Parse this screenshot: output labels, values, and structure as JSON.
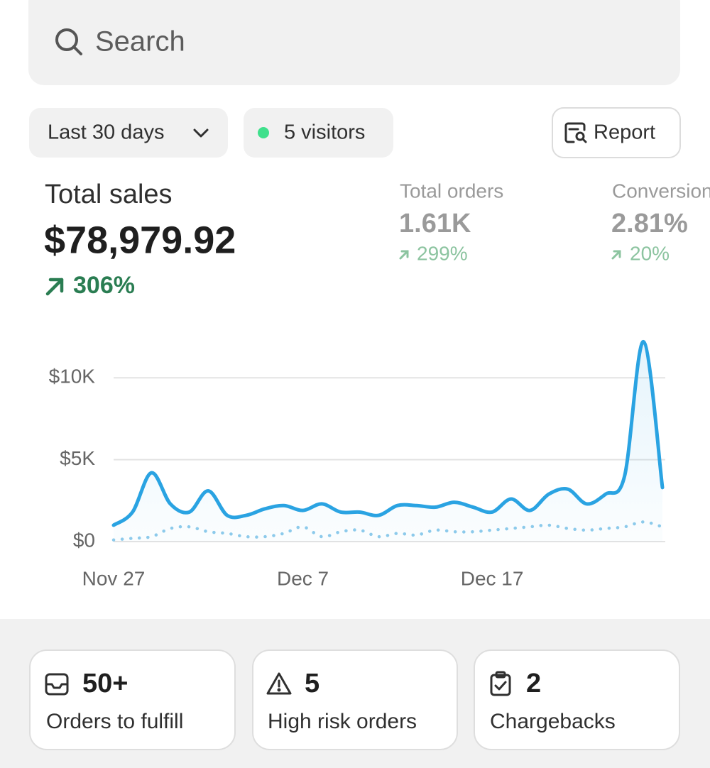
{
  "search": {
    "placeholder": "Search"
  },
  "filters": {
    "date_range": "Last 30 days",
    "visitors": "5 visitors",
    "report": "Report"
  },
  "metrics": [
    {
      "label": "Total sales",
      "value": "$78,979.92",
      "change": "306%"
    },
    {
      "label": "Total orders",
      "value": "1.61K",
      "change": "299%"
    },
    {
      "label": "Conversion rate",
      "value": "2.81%",
      "change": "20%"
    }
  ],
  "chart_data": {
    "type": "line",
    "categories": [
      "Nov 27",
      null,
      null,
      null,
      null,
      null,
      null,
      null,
      null,
      null,
      "Dec 7",
      null,
      null,
      null,
      null,
      null,
      null,
      null,
      null,
      null,
      "Dec 17",
      null,
      null,
      null,
      null,
      null,
      null,
      null,
      null,
      null
    ],
    "series": [
      {
        "color": "#2aa3e2",
        "style": "solid",
        "values": [
          1000,
          1800,
          4200,
          2300,
          1800,
          3100,
          1600,
          1600,
          2000,
          2200,
          1900,
          2300,
          1800,
          1800,
          1600,
          2200,
          2200,
          2100,
          2400,
          2100,
          1800,
          2600,
          1900,
          2900,
          3200,
          2300,
          2900,
          4000,
          12200,
          3300
        ]
      },
      {
        "color": "#8fcbeb",
        "style": "dotted",
        "values": [
          100,
          200,
          300,
          800,
          900,
          600,
          500,
          300,
          300,
          500,
          900,
          300,
          600,
          700,
          300,
          500,
          400,
          700,
          600,
          600,
          700,
          800,
          900,
          1000,
          800,
          700,
          800,
          900,
          1200,
          900
        ]
      }
    ],
    "ylim": [
      0,
      13000
    ],
    "yticks": [
      {
        "value": 0,
        "label": "$0"
      },
      {
        "value": 5000,
        "label": "$5K"
      },
      {
        "value": 10000,
        "label": "$10K"
      }
    ],
    "grid": true
  },
  "cards": [
    {
      "value": "50+",
      "label": "Orders to fulfill"
    },
    {
      "value": "5",
      "label": "High risk orders"
    },
    {
      "value": "2",
      "label": "Chargebacks"
    }
  ]
}
